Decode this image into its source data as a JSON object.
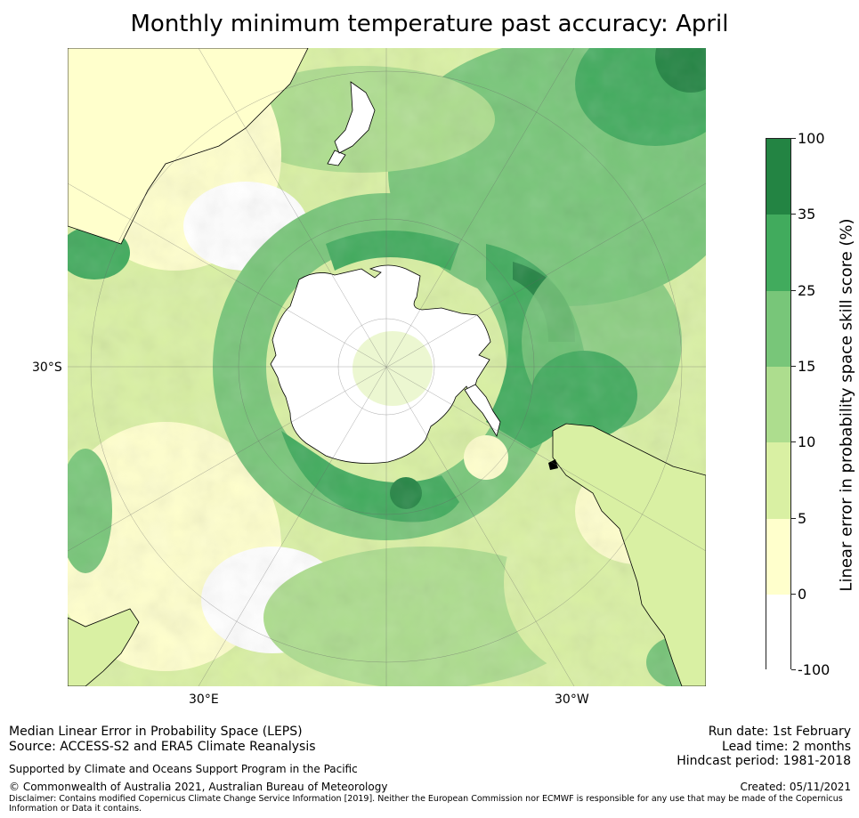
{
  "title": "Monthly minimum temperature past accuracy: April",
  "map": {
    "lat_label": "30°S",
    "lon_labels": [
      "30°E",
      "30°W"
    ],
    "colors": {
      "ocean_base": "#ffffc0",
      "land": "#ffffff",
      "coast": "#000000",
      "grid": "#666666"
    }
  },
  "colorbar": {
    "title": "Linear error in probability space skill score (%)",
    "ticks": [
      "100",
      "35",
      "25",
      "15",
      "10",
      "5",
      "0",
      "-100"
    ],
    "bins": [
      {
        "range": "35–100",
        "color": "#238443"
      },
      {
        "range": "25–35",
        "color": "#41ab5d"
      },
      {
        "range": "15–25",
        "color": "#78c679"
      },
      {
        "range": "10–15",
        "color": "#addd8e"
      },
      {
        "range": "5–10",
        "color": "#d9f0a3"
      },
      {
        "range": "0–5",
        "color": "#ffffcc"
      },
      {
        "range": "-100–0",
        "color": "#ffffff"
      }
    ]
  },
  "footer": {
    "line1": "Median Linear Error in Probability Space (LEPS)",
    "line2": "Source: ACCESS-S2 and ERA5 Climate Reanalysis",
    "supported": "Supported by Climate and Oceans Support Program in the Pacific",
    "copyright": "© Commonwealth of Australia 2021, Australian Bureau of Meteorology",
    "disclaimer": "Disclaimer: Contains modified Copernicus Climate Change Service Information [2019]. Neither the European Commission nor ECMWF is responsible for any use that may be made of the Copernicus Information or Data it contains.",
    "run_date": "Run date: 1st February",
    "lead_time": "Lead time: 2 months",
    "hindcast": "Hindcast period: 1981-2018",
    "created": "Created: 05/11/2021"
  }
}
